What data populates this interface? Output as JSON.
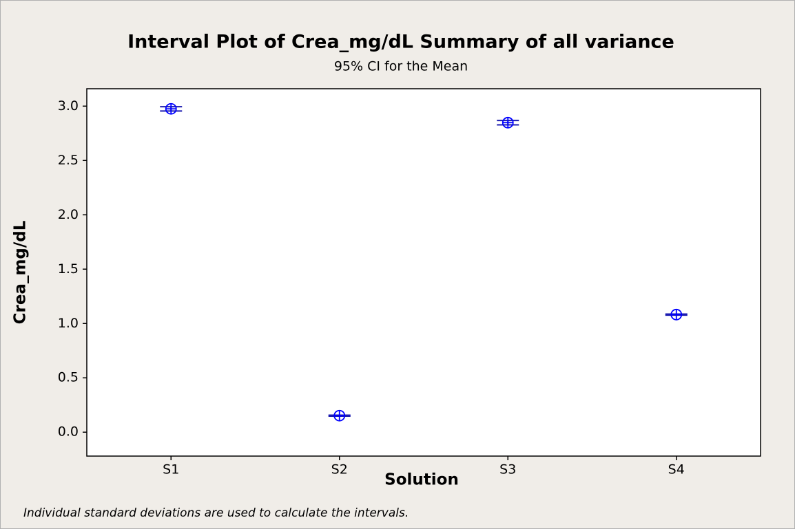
{
  "chart_data": {
    "type": "interval",
    "title": "Interval Plot of Crea_mg/dL  Summary of all variance",
    "subtitle": "95% CI for the Mean",
    "x_label": "Solution",
    "y_label": "Crea_mg/dL",
    "footnote": "Individual standard deviations are used to calculate the intervals.",
    "categories": [
      "S1",
      "S2",
      "S3",
      "S4"
    ],
    "values": [
      2.975,
      0.152,
      2.848,
      1.082
    ],
    "errors": [
      0.02,
      0.005,
      0.02,
      0.005
    ],
    "color": "#0000ff",
    "ylim": [
      -0.22,
      3.16
    ],
    "yticks": [
      {
        "value": 0,
        "label": "0.0"
      },
      0.5,
      {
        "value": 1,
        "label": "1.0"
      },
      1.5,
      {
        "value": 2,
        "label": "2.0"
      },
      2.5,
      {
        "value": 3,
        "label": "3.0"
      }
    ]
  }
}
